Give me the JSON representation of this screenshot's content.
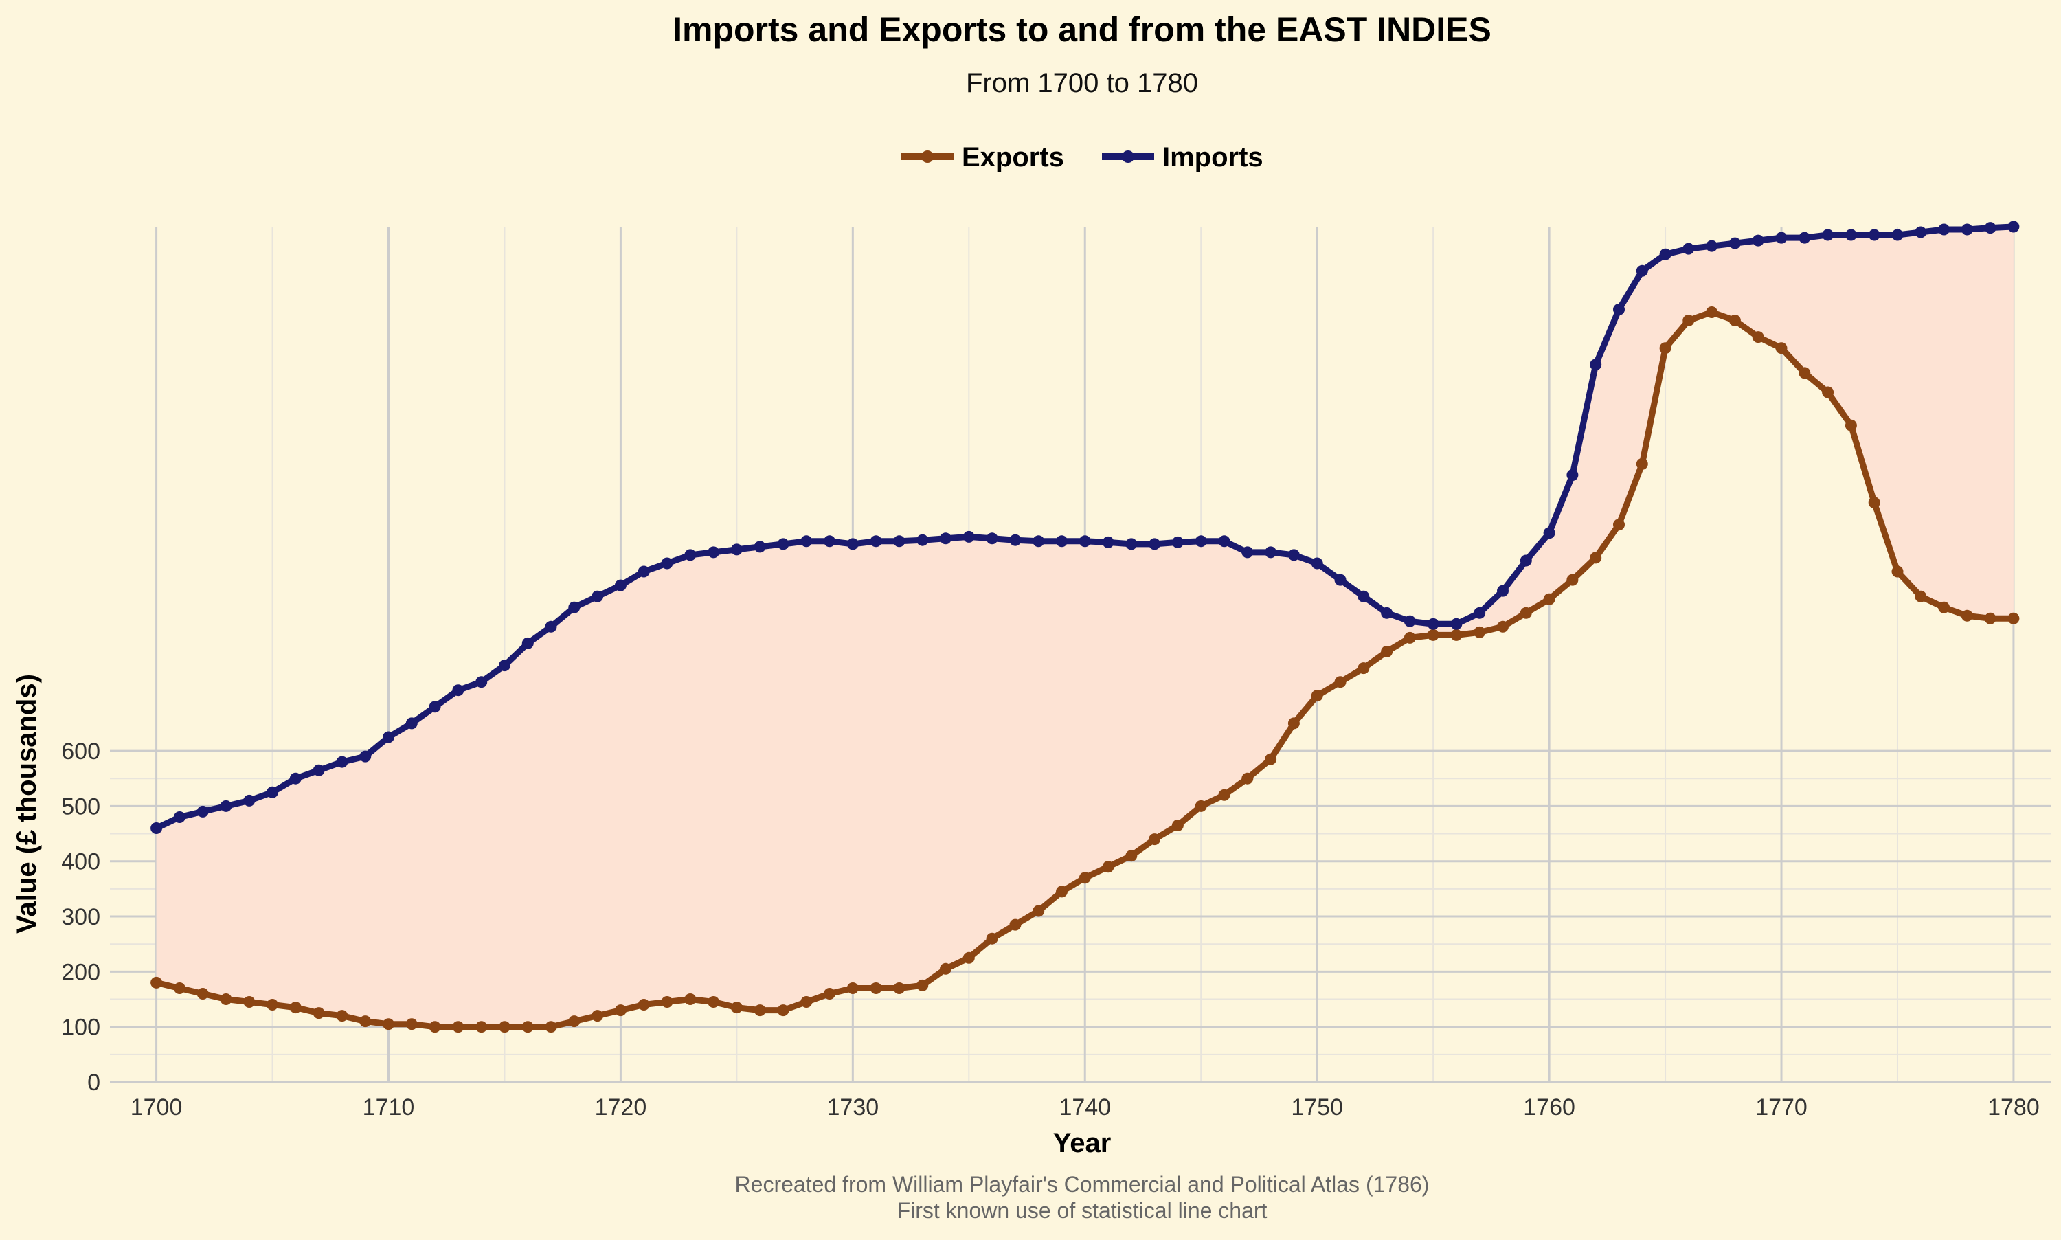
{
  "chart_data": {
    "type": "line",
    "title": "Imports and Exports to and from the EAST INDIES",
    "subtitle": "From 1700 to 1780",
    "xlabel": "Year",
    "ylabel": "Value (£ thousands)",
    "caption_line1": "Recreated from William Playfair's Commercial and Political Atlas (1786)",
    "caption_line2": "First known use of statistical line chart",
    "xlim": [
      1698,
      1781.6
    ],
    "ylim": [
      0,
      1550
    ],
    "x_ticks": [
      1700,
      1710,
      1720,
      1730,
      1740,
      1750,
      1760,
      1770,
      1780
    ],
    "y_ticks": [
      0,
      100,
      200,
      300,
      400,
      500,
      600
    ],
    "grid": true,
    "legend_position": "top-center",
    "fill_between": true,
    "colors": {
      "background": "#fdf6dd",
      "fill": "#fde3d4",
      "grid_major": "#cccccc",
      "grid_minor": "#e8e4dc",
      "exports": "#8b4513",
      "imports": "#1a1a6e"
    },
    "x": [
      1700,
      1701,
      1702,
      1703,
      1704,
      1705,
      1706,
      1707,
      1708,
      1709,
      1710,
      1711,
      1712,
      1713,
      1714,
      1715,
      1716,
      1717,
      1718,
      1719,
      1720,
      1721,
      1722,
      1723,
      1724,
      1725,
      1726,
      1727,
      1728,
      1729,
      1730,
      1731,
      1732,
      1733,
      1734,
      1735,
      1736,
      1737,
      1738,
      1739,
      1740,
      1741,
      1742,
      1743,
      1744,
      1745,
      1746,
      1747,
      1748,
      1749,
      1750,
      1751,
      1752,
      1753,
      1754,
      1755,
      1756,
      1757,
      1758,
      1759,
      1760,
      1761,
      1762,
      1763,
      1764,
      1765,
      1766,
      1767,
      1768,
      1769,
      1770,
      1771,
      1772,
      1773,
      1774,
      1775,
      1776,
      1777,
      1778,
      1779,
      1780
    ],
    "series": [
      {
        "name": "Exports",
        "color": "#8b4513",
        "values": [
          180,
          170,
          160,
          150,
          145,
          140,
          135,
          125,
          120,
          110,
          105,
          105,
          100,
          100,
          100,
          100,
          100,
          100,
          110,
          120,
          130,
          140,
          145,
          150,
          145,
          135,
          130,
          130,
          145,
          160,
          170,
          170,
          170,
          175,
          205,
          225,
          260,
          285,
          310,
          345,
          370,
          390,
          410,
          440,
          465,
          500,
          520,
          550,
          585,
          650,
          700,
          725,
          750,
          780,
          805,
          810,
          810,
          815,
          825,
          850,
          875,
          910,
          950,
          1010,
          1120,
          1330,
          1380,
          1395,
          1380,
          1350,
          1330,
          1285,
          1250,
          1190,
          1050,
          925,
          880,
          860,
          845,
          840,
          840
        ]
      },
      {
        "name": "Imports",
        "color": "#1a1a6e",
        "values": [
          460,
          480,
          490,
          500,
          510,
          525,
          550,
          565,
          580,
          590,
          625,
          650,
          680,
          710,
          725,
          755,
          795,
          825,
          860,
          880,
          900,
          925,
          940,
          955,
          960,
          965,
          970,
          975,
          980,
          980,
          975,
          980,
          980,
          982,
          985,
          988,
          985,
          982,
          980,
          980,
          980,
          978,
          975,
          975,
          978,
          980,
          980,
          960,
          960,
          955,
          940,
          910,
          880,
          850,
          835,
          830,
          830,
          850,
          890,
          945,
          995,
          1100,
          1300,
          1400,
          1470,
          1500,
          1510,
          1515,
          1520,
          1525,
          1530,
          1530,
          1535,
          1535,
          1535,
          1535,
          1540,
          1545,
          1545,
          1548,
          1550
        ]
      }
    ]
  }
}
